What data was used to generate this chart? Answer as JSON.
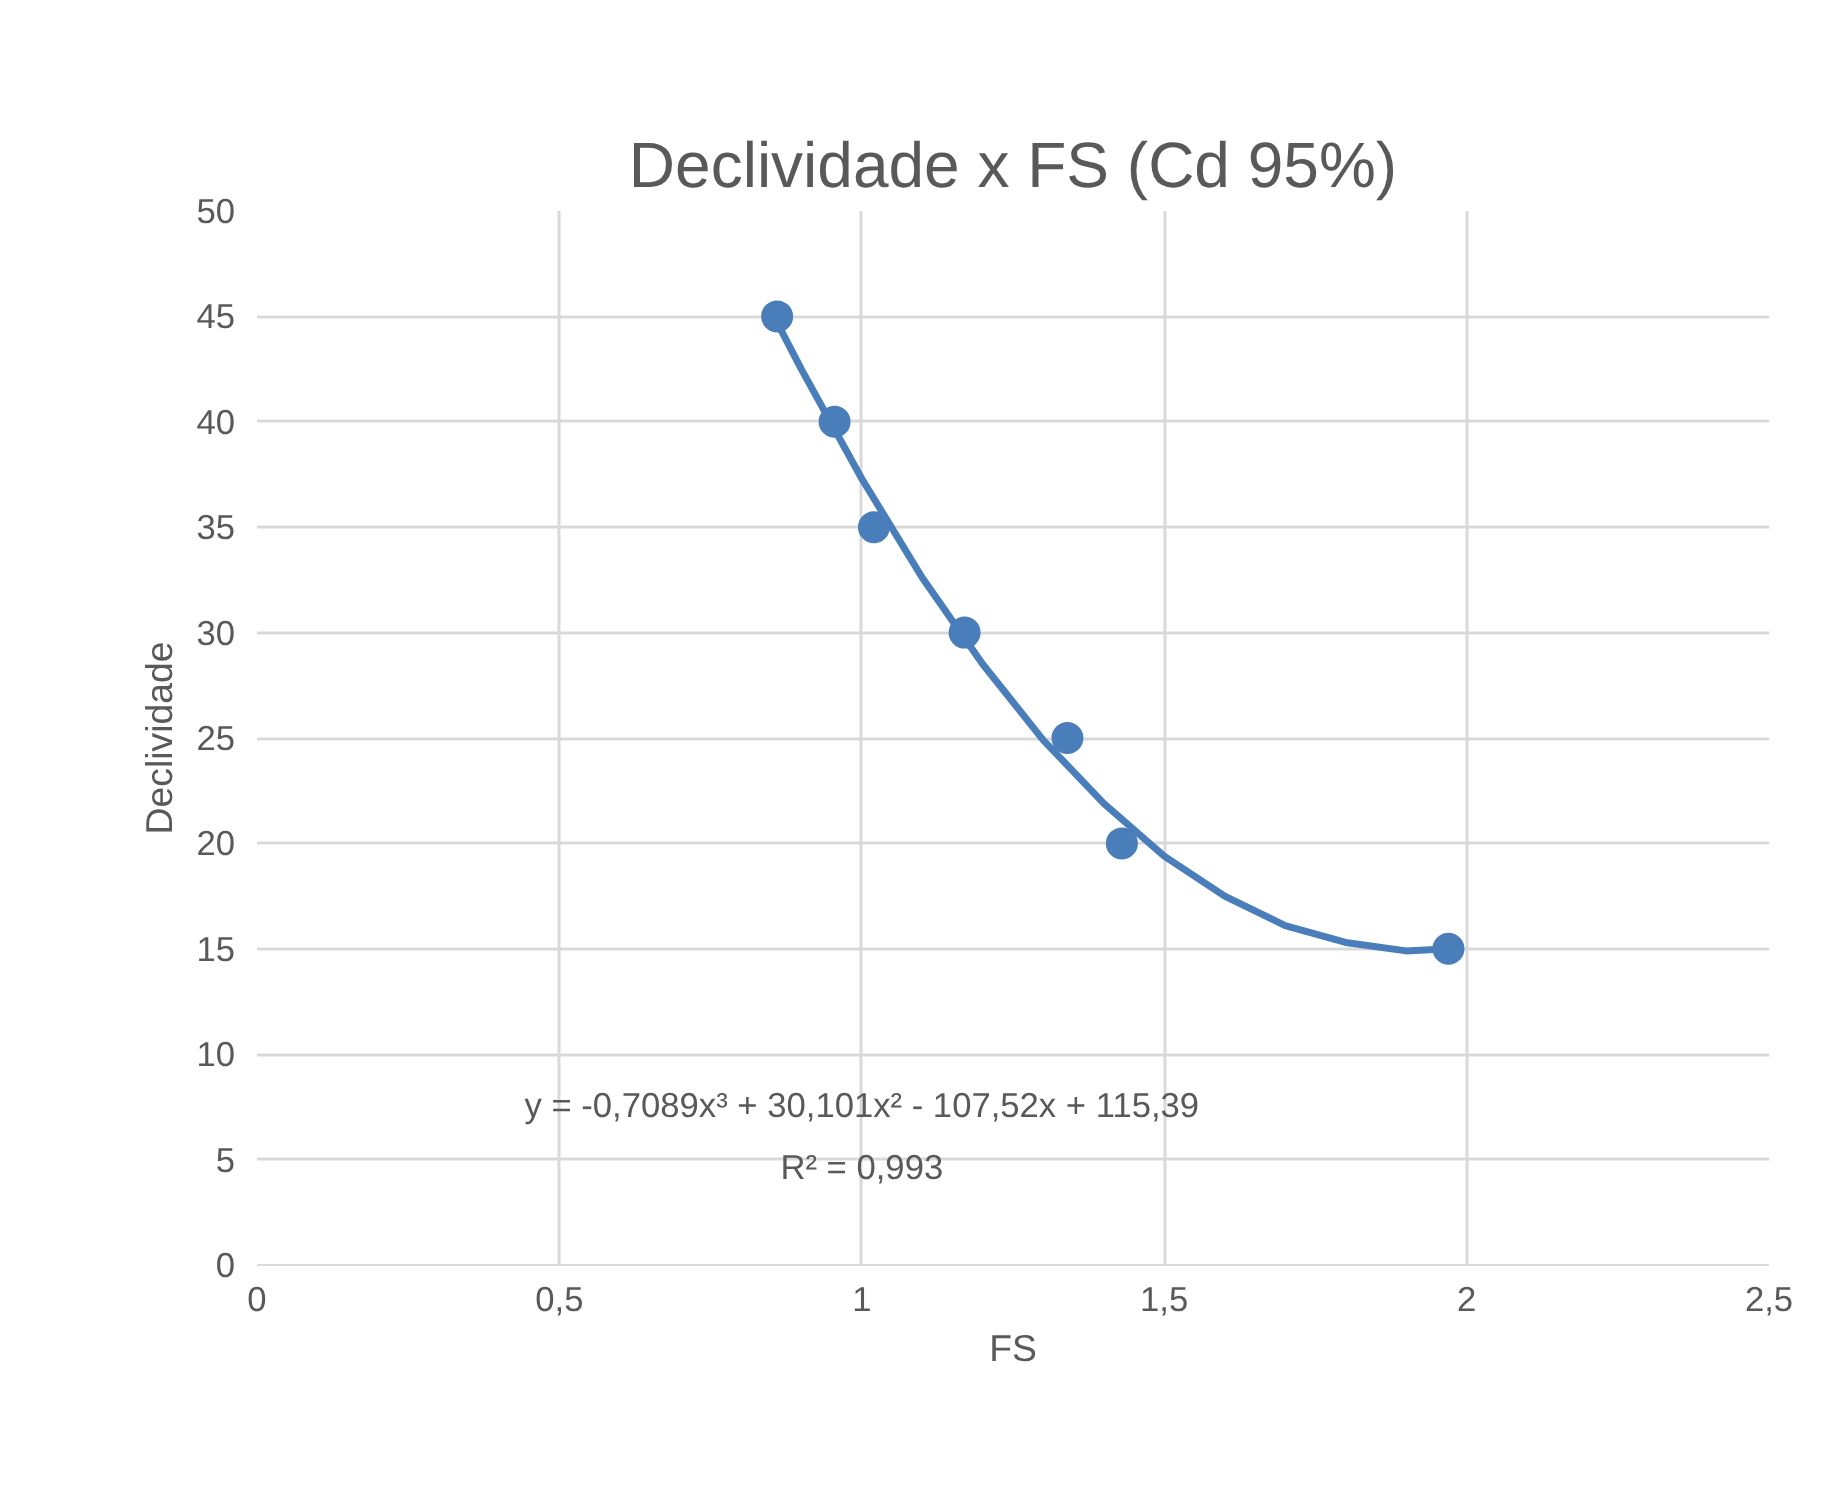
{
  "chart_data": {
    "type": "scatter",
    "title": "Declividade x FS (Cd 95%)",
    "xlabel": "FS",
    "ylabel": "Declividade",
    "series": [
      {
        "marker": "circle",
        "color": "#4a7ebb",
        "x": [
          0.86,
          0.955,
          1.02,
          1.17,
          1.34,
          1.43,
          1.97
        ],
        "values": [
          45,
          40,
          35,
          30,
          25,
          20,
          15
        ]
      },
      {
        "type": "line",
        "marker": "none",
        "color": "#4a7ebb",
        "x": [
          0.86,
          0.9,
          1.0,
          1.1,
          1.2,
          1.3,
          1.4,
          1.5,
          1.6,
          1.7,
          1.8,
          1.9,
          1.97
        ],
        "values": [
          44.7,
          42.5,
          37.3,
          32.6,
          28.5,
          24.9,
          21.9,
          19.4,
          17.5,
          16.1,
          15.3,
          14.9,
          15.0
        ]
      }
    ],
    "line_style": "solid",
    "grid": true,
    "xlim": [
      0,
      2.5
    ],
    "xticks": [
      0,
      {
        "value": 0.5,
        "label": "0,5"
      },
      1,
      {
        "value": 1.5,
        "label": "1,5"
      },
      2,
      {
        "value": 2.5,
        "label": "2,5"
      }
    ],
    "ylim": [
      0,
      50
    ],
    "yticks": [
      0,
      5,
      10,
      15,
      20,
      25,
      30,
      35,
      40,
      45,
      50
    ],
    "annotations": [
      "y = -0,7089x³ + 30,101x² - 107,52x + 115,39",
      "R² = 0,993"
    ]
  }
}
